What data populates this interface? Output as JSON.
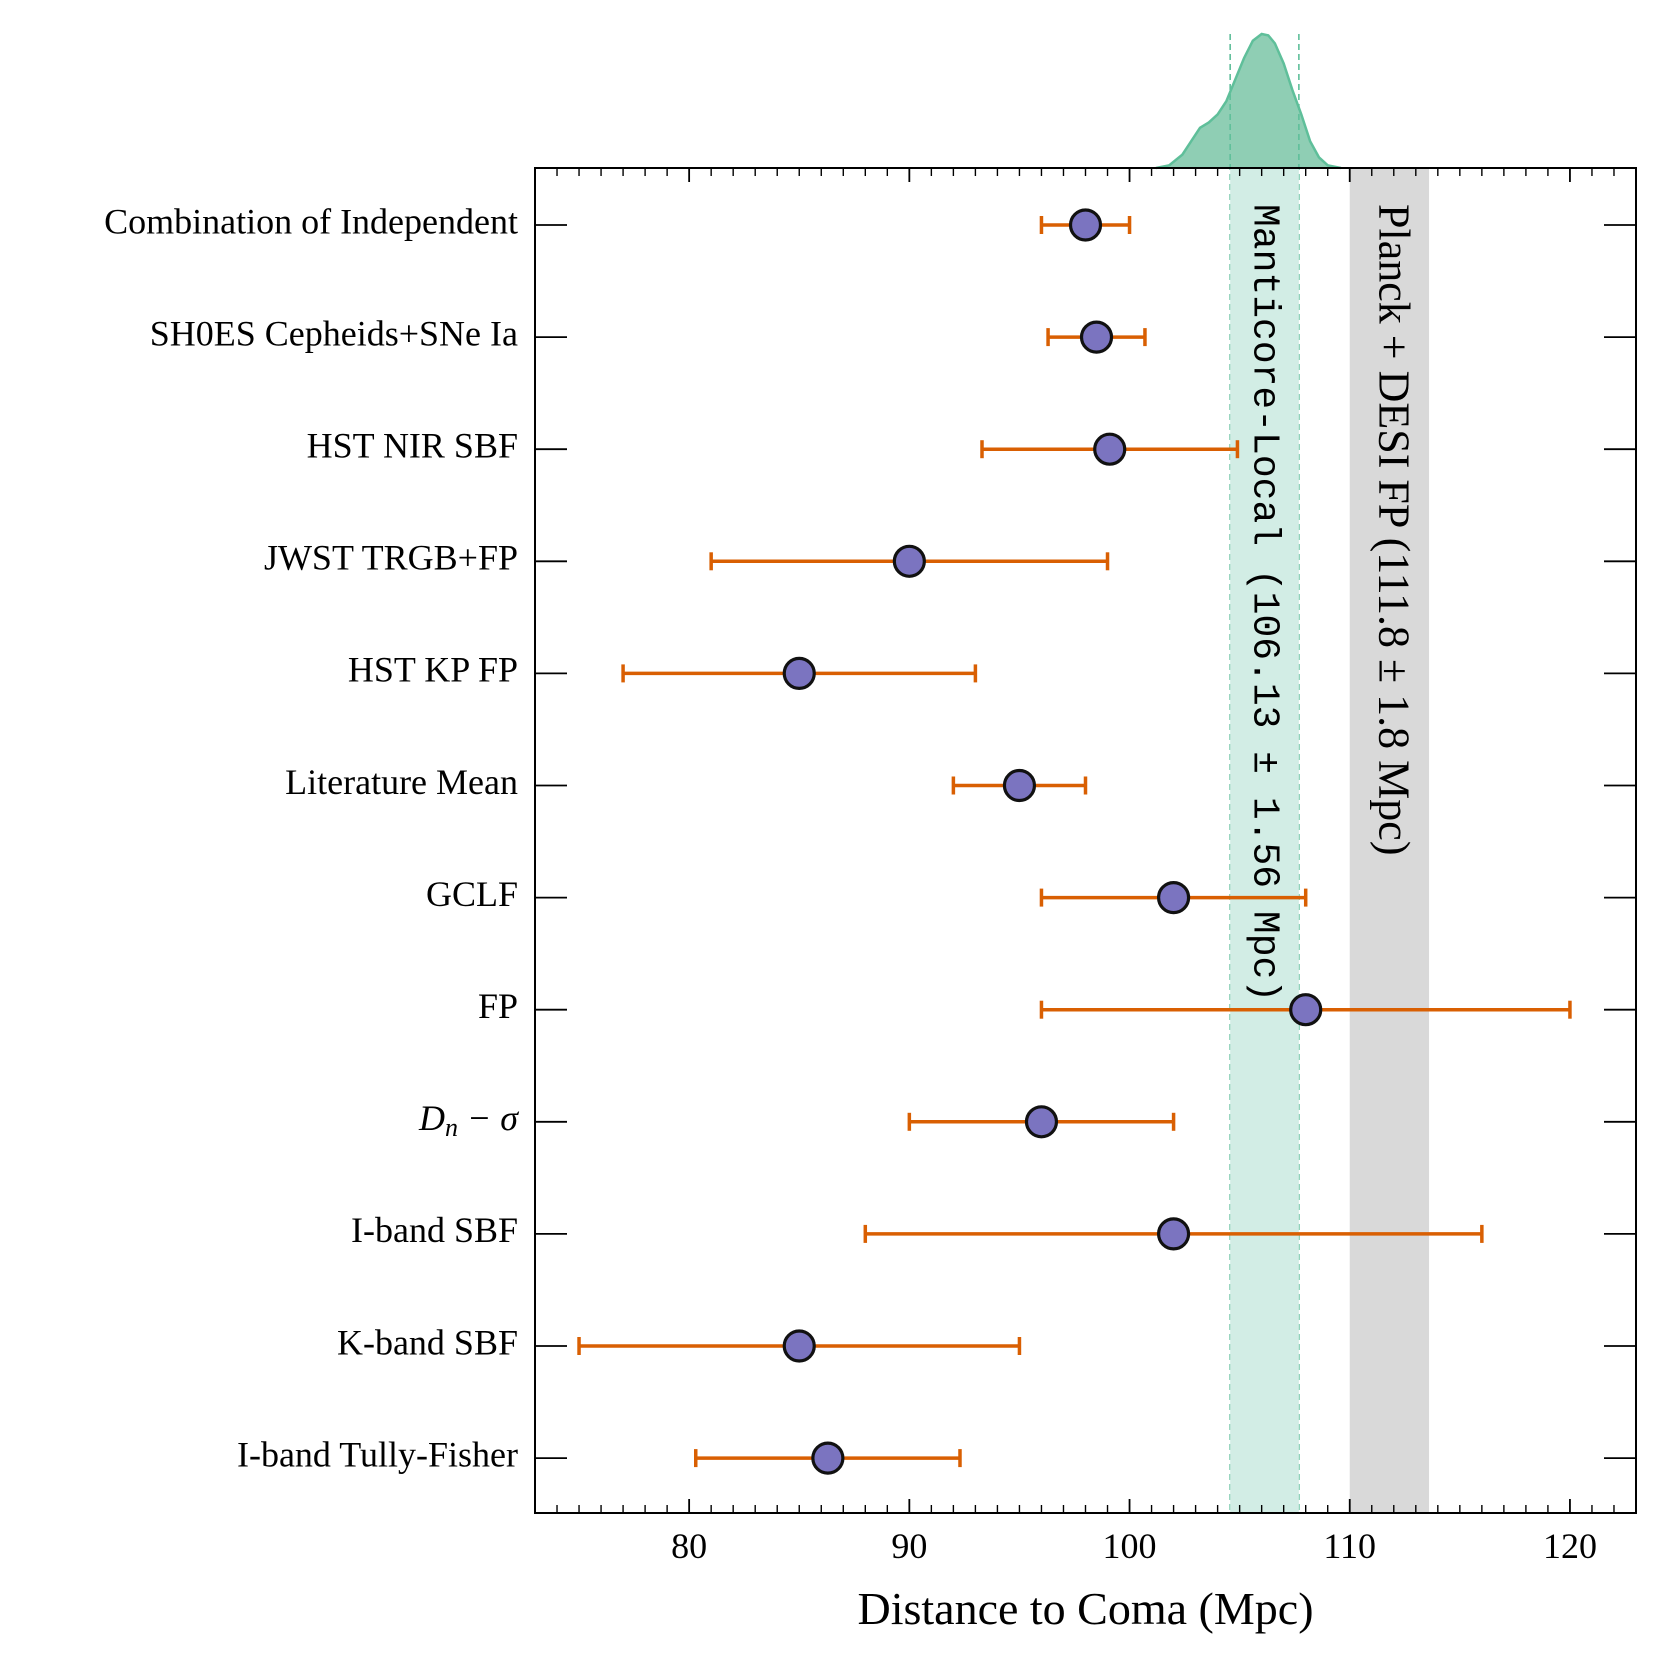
{
  "chart_data": {
    "type": "scatter",
    "title": "",
    "xlabel": "Distance to Coma (Mpc)",
    "ylabel": "",
    "xlim": [
      73,
      123
    ],
    "xticks": [
      80,
      90,
      100,
      110,
      120
    ],
    "xtick_labels": [
      "80",
      "90",
      "100",
      "110",
      "120"
    ],
    "grid": false,
    "colors": {
      "marker_fill": "#7b74c0",
      "marker_edge": "#111111",
      "errorbar": "#d95f02",
      "manticore_band": "#d2ede5",
      "planck_band": "#d9d9d9",
      "kde_fill": "#8fceb4",
      "kde_line": "#5fbf9a"
    },
    "measurements": [
      {
        "label": "Combination of Independent",
        "value": 98.0,
        "err_low": 2.0,
        "err_high": 2.0
      },
      {
        "label": "SH0ES Cepheids+SNe Ia",
        "value": 98.5,
        "err_low": 2.2,
        "err_high": 2.2
      },
      {
        "label": "HST NIR SBF",
        "value": 99.1,
        "err_low": 5.8,
        "err_high": 5.8
      },
      {
        "label": "JWST TRGB+FP",
        "value": 90.0,
        "err_low": 9.0,
        "err_high": 9.0
      },
      {
        "label": "HST KP FP",
        "value": 85.0,
        "err_low": 8.0,
        "err_high": 8.0
      },
      {
        "label": "Literature Mean",
        "value": 95.0,
        "err_low": 3.0,
        "err_high": 3.0
      },
      {
        "label": "GCLF",
        "value": 102.0,
        "err_low": 6.0,
        "err_high": 6.0
      },
      {
        "label": "FP",
        "value": 108.0,
        "err_low": 12.0,
        "err_high": 12.0
      },
      {
        "label": "Dn-σ",
        "label_main": "D",
        "label_sub": "n",
        "label_tail": " − σ",
        "value": 96.0,
        "err_low": 6.0,
        "err_high": 6.0
      },
      {
        "label": "I-band SBF",
        "value": 102.0,
        "err_low": 14.0,
        "err_high": 14.0
      },
      {
        "label": "K-band SBF",
        "value": 85.0,
        "err_low": 10.0,
        "err_high": 10.0
      },
      {
        "label": "I-band Tully-Fisher",
        "value": 86.3,
        "err_low": 6.0,
        "err_high": 6.0
      }
    ],
    "bands": [
      {
        "label": "Manticore-Local (106.13 ± 1.56 Mpc)",
        "center": 106.13,
        "err": 1.56
      },
      {
        "label": "Planck + DESI FP (111.8 ± 1.8 Mpc)",
        "center": 111.8,
        "err": 1.8
      }
    ],
    "kde": {
      "x": [
        101.2,
        101.8,
        102.4,
        102.8,
        103.2,
        103.6,
        104.0,
        104.4,
        104.8,
        105.2,
        105.6,
        106.0,
        106.3,
        106.6,
        107.0,
        107.4,
        107.8,
        108.2,
        108.6,
        109.0,
        109.6
      ],
      "density": [
        0.0,
        0.02,
        0.1,
        0.2,
        0.3,
        0.34,
        0.4,
        0.5,
        0.66,
        0.82,
        0.95,
        1.0,
        0.99,
        0.93,
        0.78,
        0.58,
        0.4,
        0.2,
        0.08,
        0.02,
        0.0
      ],
      "dashed_lines": [
        104.57,
        107.69
      ]
    }
  }
}
